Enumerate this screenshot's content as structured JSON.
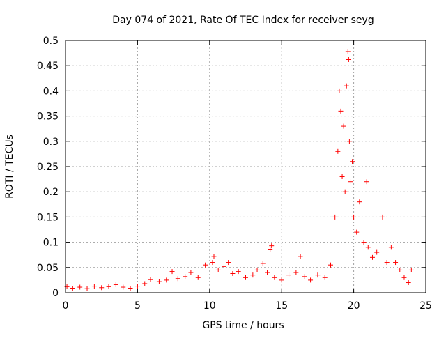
{
  "chart_data": {
    "type": "scatter",
    "title": "Day 074 of 2021, Rate Of TEC Index for receiver seyg",
    "xlabel": "GPS time / hours",
    "ylabel": "ROTI / TECUs",
    "xlim": [
      0,
      25
    ],
    "ylim": [
      0,
      0.5
    ],
    "x_ticks": [
      0,
      5,
      10,
      15,
      20,
      25
    ],
    "x_tick_labels": [
      "0",
      "5",
      "10",
      "15",
      "20",
      "25"
    ],
    "y_ticks": [
      0,
      0.05,
      0.1,
      0.15,
      0.2,
      0.25,
      0.3,
      0.35,
      0.4,
      0.45,
      0.5
    ],
    "y_tick_labels": [
      "0",
      "0.05",
      "0.1",
      "0.15",
      "0.2",
      "0.25",
      "0.3",
      "0.35",
      "0.4",
      "0.45",
      "0.5"
    ],
    "grid": true,
    "marker": "+",
    "marker_color": "#ff0000",
    "series": [
      {
        "points": [
          [
            0.1,
            0.012
          ],
          [
            0.5,
            0.009
          ],
          [
            1.0,
            0.011
          ],
          [
            1.5,
            0.008
          ],
          [
            2.0,
            0.013
          ],
          [
            2.5,
            0.01
          ],
          [
            3.0,
            0.012
          ],
          [
            3.5,
            0.016
          ],
          [
            4.0,
            0.011
          ],
          [
            4.5,
            0.009
          ],
          [
            5.0,
            0.013
          ],
          [
            5.5,
            0.018
          ],
          [
            5.9,
            0.026
          ],
          [
            6.5,
            0.022
          ],
          [
            7.0,
            0.025
          ],
          [
            7.4,
            0.042
          ],
          [
            7.8,
            0.028
          ],
          [
            8.3,
            0.032
          ],
          [
            8.7,
            0.04
          ],
          [
            9.2,
            0.03
          ],
          [
            9.7,
            0.055
          ],
          [
            10.2,
            0.06
          ],
          [
            10.3,
            0.072
          ],
          [
            10.6,
            0.045
          ],
          [
            11.0,
            0.052
          ],
          [
            11.3,
            0.06
          ],
          [
            11.6,
            0.038
          ],
          [
            12.0,
            0.042
          ],
          [
            12.5,
            0.03
          ],
          [
            13.0,
            0.035
          ],
          [
            13.3,
            0.045
          ],
          [
            13.7,
            0.058
          ],
          [
            14.0,
            0.04
          ],
          [
            14.2,
            0.085
          ],
          [
            14.3,
            0.093
          ],
          [
            14.5,
            0.03
          ],
          [
            15.0,
            0.025
          ],
          [
            15.5,
            0.035
          ],
          [
            16.0,
            0.04
          ],
          [
            16.3,
            0.072
          ],
          [
            16.6,
            0.032
          ],
          [
            17.0,
            0.025
          ],
          [
            17.5,
            0.035
          ],
          [
            18.0,
            0.03
          ],
          [
            18.4,
            0.055
          ],
          [
            18.7,
            0.15
          ],
          [
            18.9,
            0.28
          ],
          [
            19.0,
            0.4
          ],
          [
            19.1,
            0.36
          ],
          [
            19.2,
            0.23
          ],
          [
            19.3,
            0.33
          ],
          [
            19.4,
            0.2
          ],
          [
            19.5,
            0.41
          ],
          [
            19.6,
            0.478
          ],
          [
            19.65,
            0.462
          ],
          [
            19.7,
            0.3
          ],
          [
            19.8,
            0.22
          ],
          [
            19.9,
            0.26
          ],
          [
            20.0,
            0.15
          ],
          [
            20.2,
            0.12
          ],
          [
            20.4,
            0.18
          ],
          [
            20.7,
            0.1
          ],
          [
            20.9,
            0.22
          ],
          [
            21.0,
            0.09
          ],
          [
            21.3,
            0.07
          ],
          [
            21.6,
            0.08
          ],
          [
            22.0,
            0.15
          ],
          [
            22.3,
            0.06
          ],
          [
            22.6,
            0.09
          ],
          [
            22.9,
            0.06
          ],
          [
            23.2,
            0.045
          ],
          [
            23.5,
            0.03
          ],
          [
            23.8,
            0.02
          ],
          [
            24.0,
            0.045
          ]
        ]
      }
    ]
  }
}
